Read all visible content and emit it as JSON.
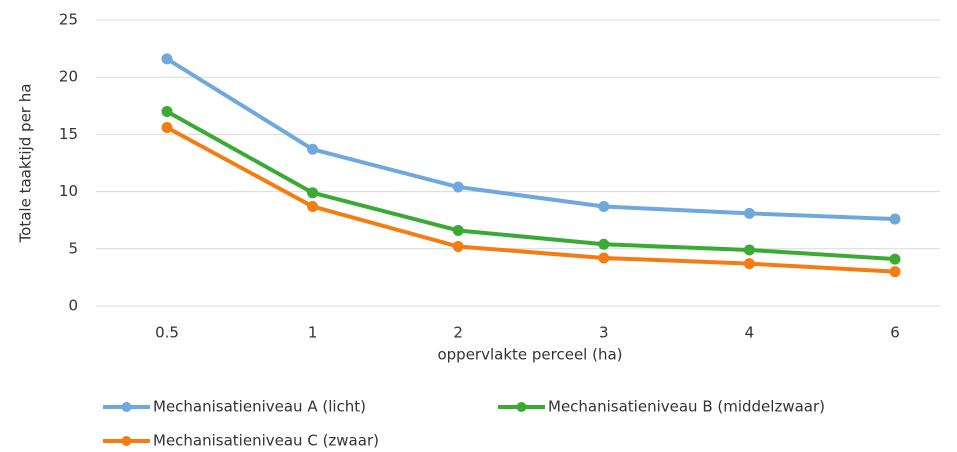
{
  "chart_data": {
    "type": "line",
    "x_label": "oppervlakte perceel (ha)",
    "y_label": "Totale taaktijd per ha",
    "categories": [
      "0.5",
      "1",
      "2",
      "3",
      "4",
      "6"
    ],
    "series": [
      {
        "name": "Mechanisatieniveau A (licht)",
        "color": "#6fa8dc",
        "values": [
          21.6,
          13.7,
          10.4,
          8.7,
          8.1,
          7.6
        ]
      },
      {
        "name": "Mechanisatieniveau B (middelzwaar)",
        "color": "#3aaa35",
        "values": [
          17.0,
          9.9,
          6.6,
          5.4,
          4.9,
          4.1
        ]
      },
      {
        "name": "Mechanisatieniveau C (zwaar)",
        "color": "#f57c12",
        "values": [
          15.6,
          8.7,
          5.2,
          4.2,
          3.7,
          3.0
        ]
      }
    ],
    "ylim": [
      0,
      25
    ],
    "yticks": [
      0,
      5,
      10,
      15,
      20,
      25
    ],
    "grid": true
  }
}
